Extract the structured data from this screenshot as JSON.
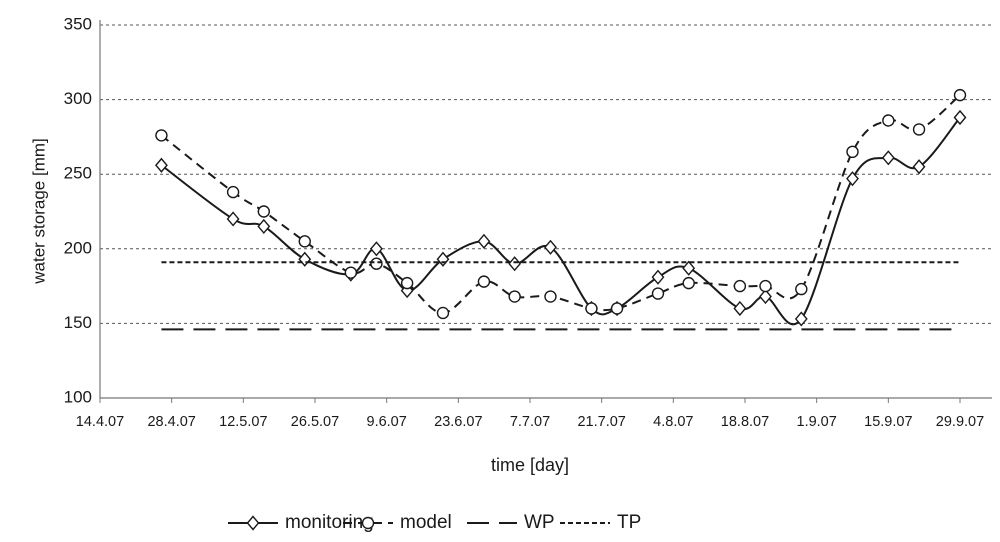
{
  "chart_data": {
    "type": "line",
    "x_label": "time [day]",
    "y_label": "water storage [mm]",
    "x": [
      "2007-04-26",
      "2007-05-10",
      "2007-05-16",
      "2007-05-24",
      "2007-06-02",
      "2007-06-07",
      "2007-06-13",
      "2007-06-20",
      "2007-06-28",
      "2007-07-04",
      "2007-07-11",
      "2007-07-19",
      "2007-07-24",
      "2007-08-01",
      "2007-08-07",
      "2007-08-17",
      "2007-08-22",
      "2007-08-29",
      "2007-09-08",
      "2007-09-15",
      "2007-09-21",
      "2007-09-29"
    ],
    "series": [
      {
        "name": "monitoring",
        "color": "#1a1a1a",
        "dash": "solid",
        "marker": "diamond",
        "smooth": true,
        "values": [
          256,
          220,
          215,
          193,
          183,
          200,
          172,
          193,
          205,
          190,
          201,
          160,
          160,
          181,
          187,
          160,
          168,
          153,
          247,
          261,
          255,
          288
        ]
      },
      {
        "name": "model",
        "color": "#1a1a1a",
        "dash": "dashed",
        "marker": "circle",
        "smooth": true,
        "values": [
          276,
          238,
          225,
          205,
          184,
          190,
          177,
          157,
          178,
          168,
          168,
          160,
          160,
          170,
          177,
          175,
          175,
          173,
          265,
          286,
          280,
          303
        ]
      },
      {
        "name": "WP",
        "color": "#1a1a1a",
        "dash": "long-dashed",
        "marker": "none",
        "smooth": false,
        "values": [
          146,
          146,
          146,
          146,
          146,
          146,
          146,
          146,
          146,
          146,
          146,
          146,
          146,
          146,
          146,
          146,
          146,
          146,
          146,
          146,
          146,
          146
        ]
      },
      {
        "name": "TP",
        "color": "#1a1a1a",
        "dash": "dotted",
        "marker": "none",
        "smooth": false,
        "values": [
          191,
          191,
          191,
          191,
          191,
          191,
          191,
          191,
          191,
          191,
          191,
          191,
          191,
          191,
          191,
          191,
          191,
          191,
          191,
          191,
          191,
          191
        ]
      }
    ],
    "xlim": [
      "2007-04-14",
      "2007-09-29"
    ],
    "xticks": [
      {
        "value": "2007-04-14",
        "label": "14.4.07"
      },
      {
        "value": "2007-04-28",
        "label": "28.4.07"
      },
      {
        "value": "2007-05-12",
        "label": "12.5.07"
      },
      {
        "value": "2007-05-26",
        "label": "26.5.07"
      },
      {
        "value": "2007-06-09",
        "label": "9.6.07"
      },
      {
        "value": "2007-06-23",
        "label": "23.6.07"
      },
      {
        "value": "2007-07-07",
        "label": "7.7.07"
      },
      {
        "value": "2007-07-21",
        "label": "21.7.07"
      },
      {
        "value": "2007-08-04",
        "label": "4.8.07"
      },
      {
        "value": "2007-08-18",
        "label": "18.8.07"
      },
      {
        "value": "2007-09-01",
        "label": "1.9.07"
      },
      {
        "value": "2007-09-15",
        "label": "15.9.07"
      },
      {
        "value": "2007-09-29",
        "label": "29.9.07"
      }
    ],
    "ylim": [
      100,
      350
    ],
    "yticks": [
      100,
      150,
      200,
      250,
      300,
      350
    ],
    "grid": true,
    "legend": "bottom"
  }
}
